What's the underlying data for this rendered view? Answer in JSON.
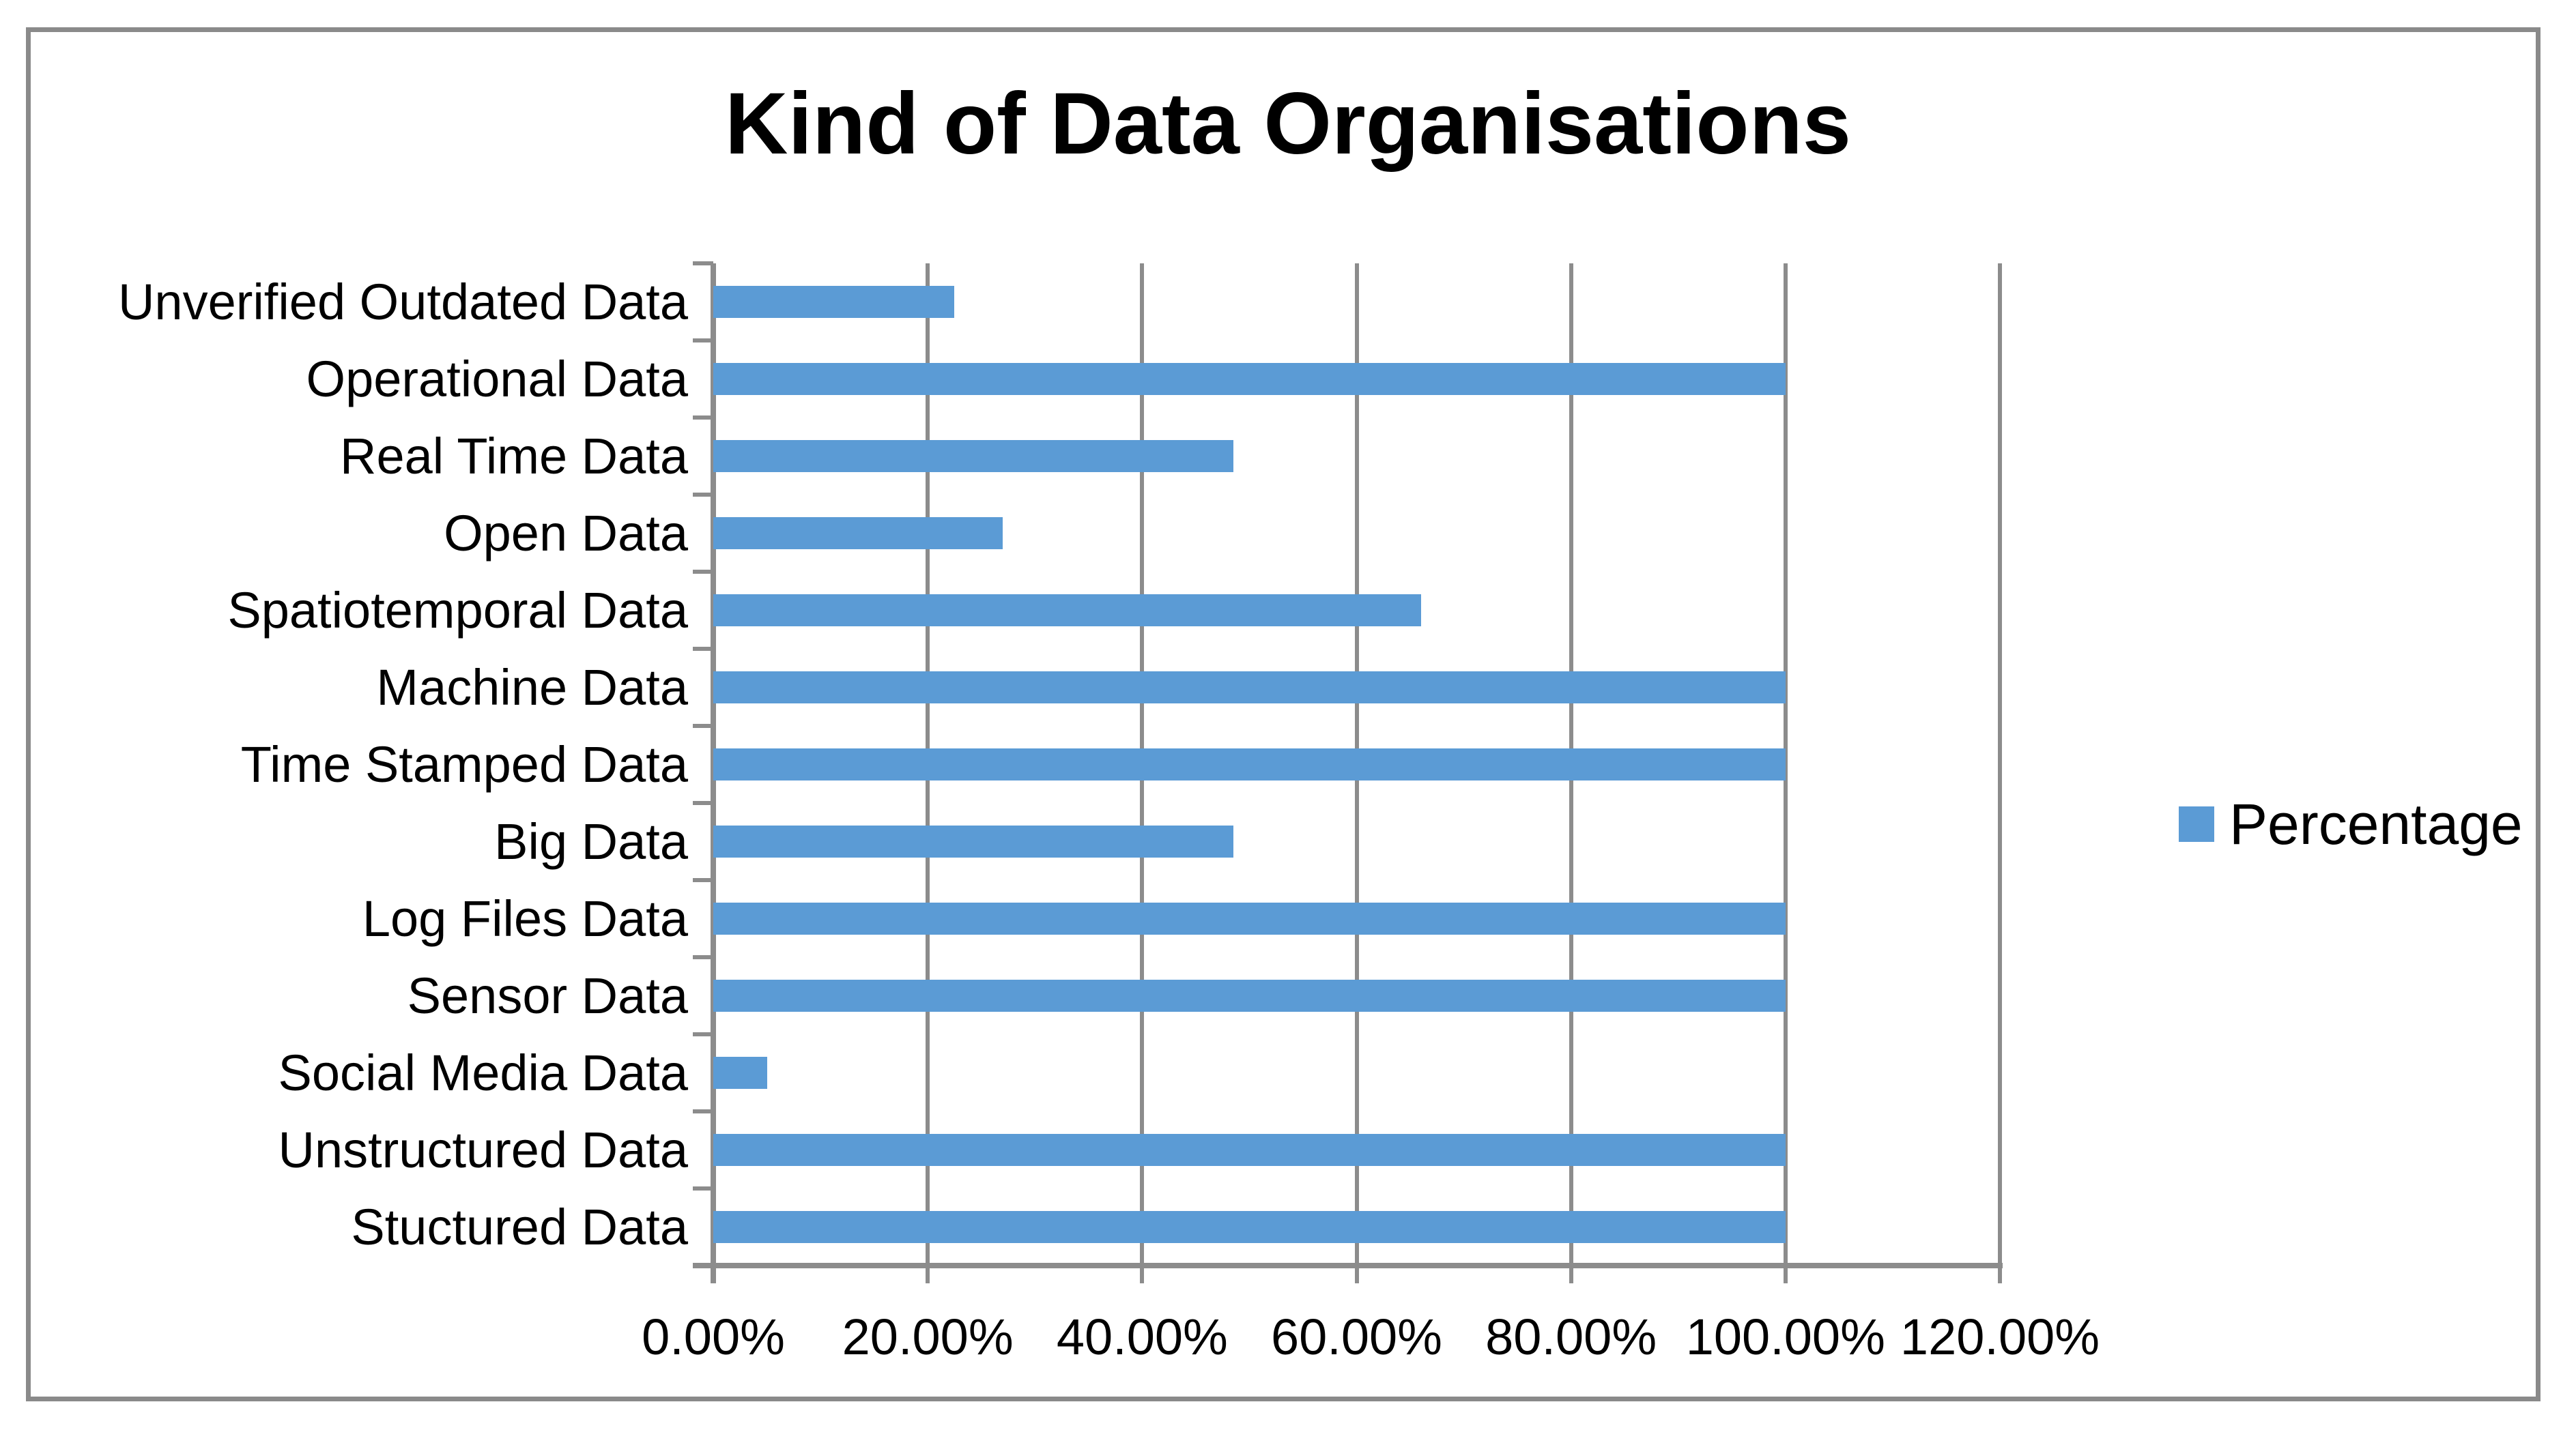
{
  "page": {
    "background": "#FFFFFF",
    "border_color": "#8A8A8A"
  },
  "chart_data": {
    "type": "bar",
    "orientation": "horizontal",
    "title": "Kind of Data Organisations",
    "categories": [
      "Unverified Outdated Data",
      "Operational Data",
      "Real Time Data",
      "Open Data",
      "Spatiotemporal Data",
      "Machine Data",
      "Time Stamped Data",
      "Big Data",
      "Log Files Data",
      "Sensor Data",
      "Social Media Data",
      "Unstructured Data",
      "Stuctured Data"
    ],
    "series": [
      {
        "name": "Percentage",
        "values": [
          22.5,
          100,
          48.5,
          27,
          66,
          100,
          100,
          48.5,
          100,
          100,
          5,
          100,
          100
        ]
      }
    ],
    "value_unit": "%",
    "xlim": [
      0,
      120
    ],
    "x_tick_step": 20,
    "x_tick_labels": [
      "0.00%",
      "20.00%",
      "40.00%",
      "60.00%",
      "80.00%",
      "100.00%",
      "120.00%"
    ],
    "grid": true,
    "legend": {
      "label": "Percentage",
      "position": "right"
    },
    "colors": {
      "bar": "#5B9BD5",
      "gridline": "#8C8C8C",
      "axis": "#8C8C8C",
      "text": "#000000"
    }
  }
}
